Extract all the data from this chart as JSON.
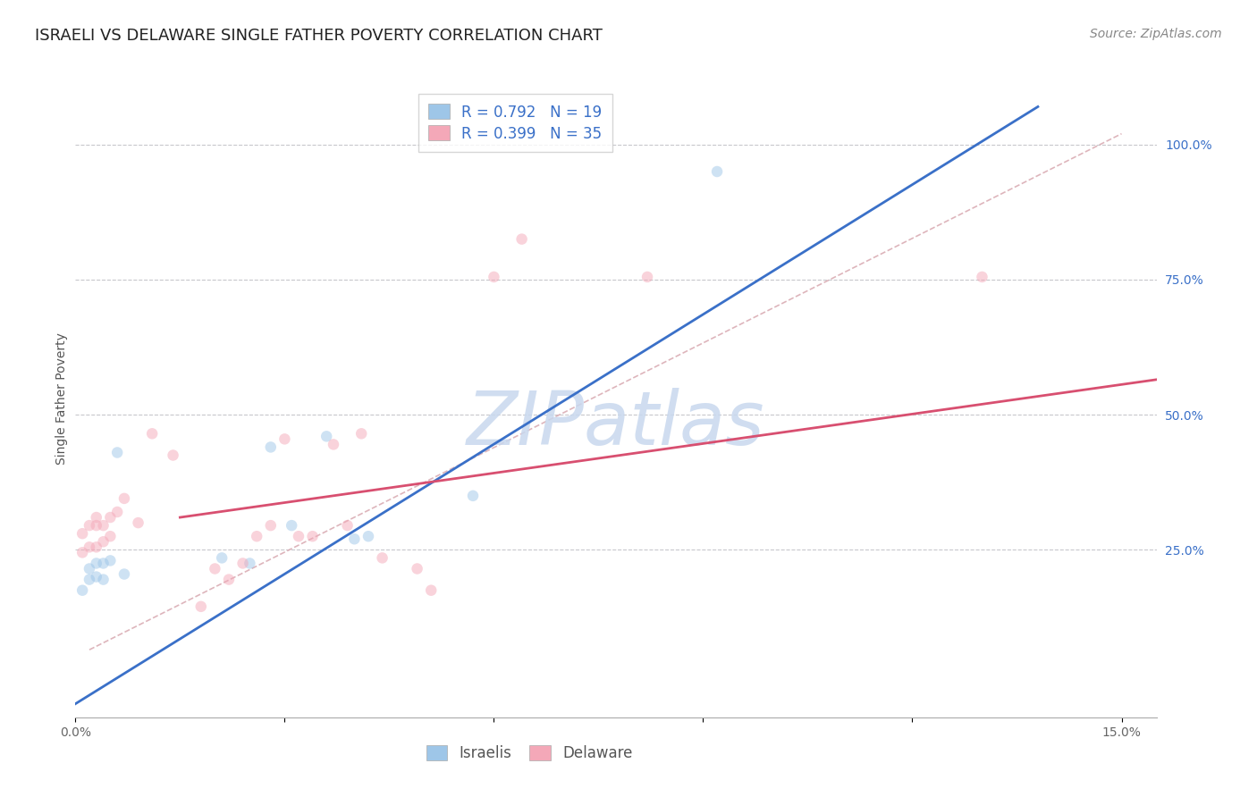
{
  "title": "ISRAELI VS DELAWARE SINGLE FATHER POVERTY CORRELATION CHART",
  "source": "Source: ZipAtlas.com",
  "ylabel": "Single Father Poverty",
  "xlim": [
    0.0,
    0.155
  ],
  "ylim": [
    -0.06,
    1.12
  ],
  "x_ticks": [
    0.0,
    0.03,
    0.06,
    0.09,
    0.12,
    0.15
  ],
  "x_tick_labels": [
    "0.0%",
    "",
    "",
    "",
    "",
    "15.0%"
  ],
  "y_ticks_right": [
    0.25,
    0.5,
    0.75,
    1.0
  ],
  "y_tick_labels_right": [
    "25.0%",
    "50.0%",
    "75.0%",
    "100.0%"
  ],
  "blue_R": "0.792",
  "blue_N": "19",
  "pink_R": "0.399",
  "pink_N": "35",
  "blue_scatter_color": "#9EC6E8",
  "pink_scatter_color": "#F4A8B8",
  "blue_line_color": "#3A70C8",
  "pink_line_color": "#D84F70",
  "diag_line_color": "#D8A8B0",
  "watermark_color": "#C8D8EE",
  "grid_color": "#C8C8CC",
  "title_color": "#222222",
  "source_color": "#888888",
  "tick_color_x": "#666666",
  "tick_color_y": "#3A70C8",
  "legend_text_color": "#3A70C8",
  "bottom_legend_color": "#555555",
  "israelis_x": [
    0.001,
    0.002,
    0.002,
    0.003,
    0.003,
    0.004,
    0.004,
    0.005,
    0.006,
    0.007,
    0.021,
    0.025,
    0.028,
    0.031,
    0.036,
    0.04,
    0.042,
    0.057,
    0.092
  ],
  "israelis_y": [
    0.175,
    0.195,
    0.215,
    0.2,
    0.225,
    0.195,
    0.225,
    0.23,
    0.43,
    0.205,
    0.235,
    0.225,
    0.44,
    0.295,
    0.46,
    0.27,
    0.275,
    0.35,
    0.95
  ],
  "delaware_x": [
    0.001,
    0.001,
    0.002,
    0.002,
    0.003,
    0.003,
    0.003,
    0.004,
    0.004,
    0.005,
    0.005,
    0.006,
    0.007,
    0.009,
    0.011,
    0.014,
    0.018,
    0.02,
    0.022,
    0.024,
    0.026,
    0.028,
    0.03,
    0.032,
    0.034,
    0.037,
    0.039,
    0.041,
    0.044,
    0.049,
    0.051,
    0.06,
    0.064,
    0.082,
    0.13
  ],
  "delaware_y": [
    0.245,
    0.28,
    0.255,
    0.295,
    0.255,
    0.295,
    0.31,
    0.265,
    0.295,
    0.275,
    0.31,
    0.32,
    0.345,
    0.3,
    0.465,
    0.425,
    0.145,
    0.215,
    0.195,
    0.225,
    0.275,
    0.295,
    0.455,
    0.275,
    0.275,
    0.445,
    0.295,
    0.465,
    0.235,
    0.215,
    0.175,
    0.755,
    0.825,
    0.755,
    0.755
  ],
  "blue_line_x": [
    0.0,
    0.138
  ],
  "blue_line_y": [
    -0.035,
    1.07
  ],
  "pink_line_x": [
    0.015,
    0.155
  ],
  "pink_line_y": [
    0.31,
    0.565
  ],
  "diag_line_x": [
    0.002,
    0.15
  ],
  "diag_line_y": [
    0.065,
    1.02
  ],
  "title_fontsize": 13,
  "source_fontsize": 10,
  "ylabel_fontsize": 10,
  "tick_fontsize": 10,
  "legend_fontsize": 12,
  "watermark_fontsize": 60,
  "marker_size": 9,
  "scatter_alpha": 0.5,
  "line_width": 2.0
}
